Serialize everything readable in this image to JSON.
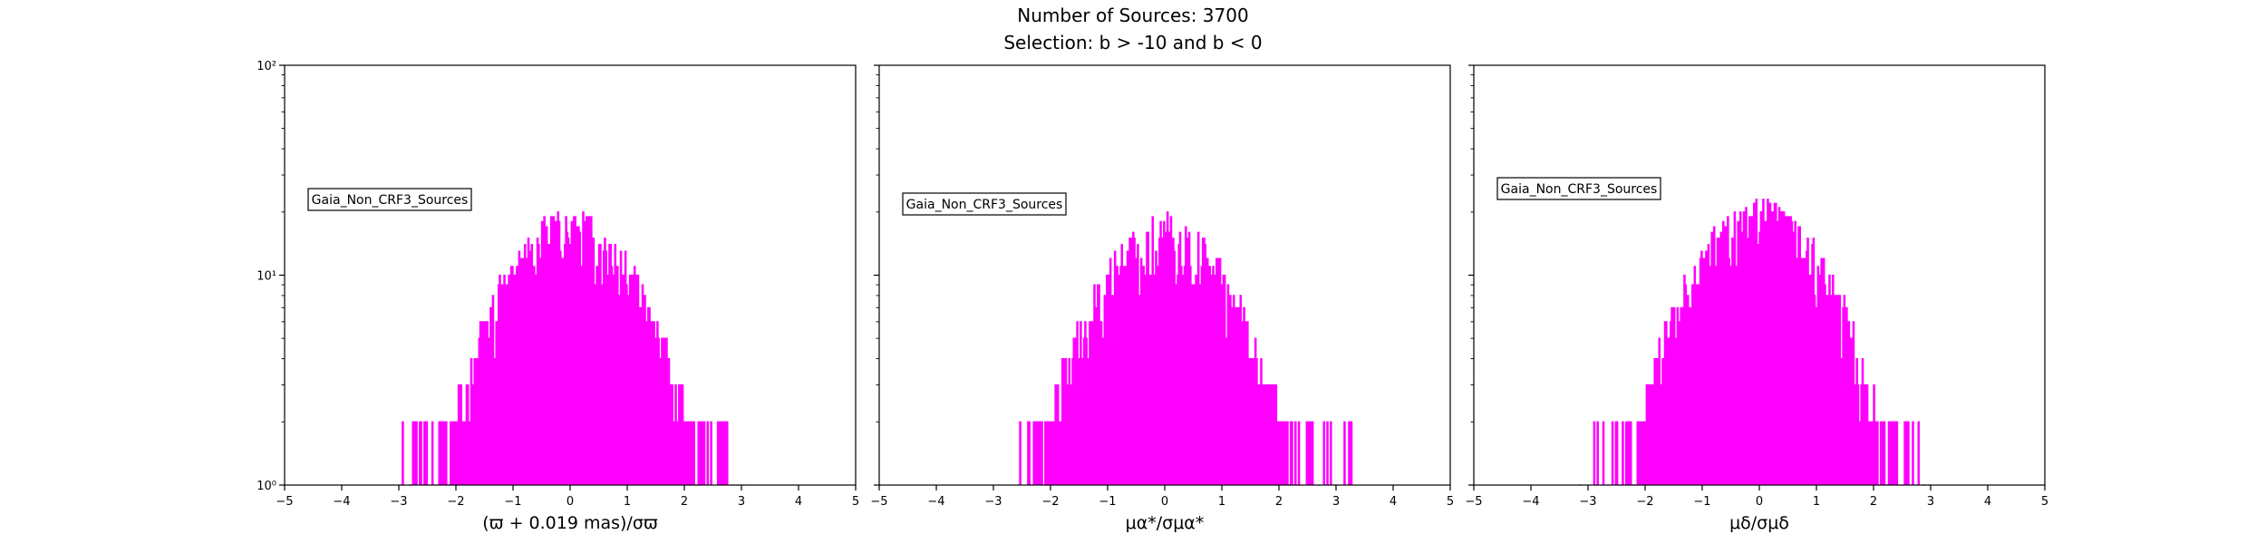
{
  "figure": {
    "title_line_1": "Number of Sources: 3700",
    "title_line_2": "Selection: b > -10 and b < 0"
  },
  "colors": {
    "series": "#ff00ff",
    "axes": "#000000"
  },
  "chart_data": [
    {
      "type": "histogram",
      "xlabel": "(ϖ + 0.019 mas)/σϖ",
      "xlim": [
        -5,
        5
      ],
      "ylim": [
        1,
        100
      ],
      "yscale": "log",
      "xticks": [
        "−5",
        "−4",
        "−3",
        "−2",
        "−1",
        "0",
        "1",
        "2",
        "3",
        "4",
        "5"
      ],
      "yticks": [
        "10⁰",
        "10¹",
        "10²"
      ],
      "legend": "Gaia_Non_CRF3_Sources",
      "legend_position": "upper-left",
      "distribution": {
        "mean": 0.0,
        "std": 1.0,
        "peak_count": 22,
        "x_min": -3.0,
        "x_max": 3.2,
        "bin_width": 0.02
      }
    },
    {
      "type": "histogram",
      "xlabel": "μα*/σμα*",
      "xlim": [
        -5,
        5
      ],
      "ylim": [
        1,
        100
      ],
      "yscale": "log",
      "xticks": [
        "−5",
        "−4",
        "−3",
        "−2",
        "−1",
        "0",
        "1",
        "2",
        "3",
        "4",
        "5"
      ],
      "yticks": [],
      "legend": "Gaia_Non_CRF3_Sources",
      "legend_position": "upper-left",
      "distribution": {
        "mean": 0.0,
        "std": 1.0,
        "peak_count": 21,
        "x_min": -2.6,
        "x_max": 3.3,
        "bin_width": 0.02
      }
    },
    {
      "type": "histogram",
      "xlabel": "μδ/σμδ",
      "xlim": [
        -5,
        5
      ],
      "ylim": [
        1,
        100
      ],
      "yscale": "log",
      "xticks": [
        "−5",
        "−4",
        "−3",
        "−2",
        "−1",
        "0",
        "1",
        "2",
        "3",
        "4",
        "5"
      ],
      "yticks": [],
      "legend": "Gaia_Non_CRF3_Sources",
      "legend_position": "upper-left",
      "distribution": {
        "mean": 0.0,
        "std": 1.0,
        "peak_count": 25,
        "x_min": -3.2,
        "x_max": 3.0,
        "bin_width": 0.02
      }
    }
  ]
}
